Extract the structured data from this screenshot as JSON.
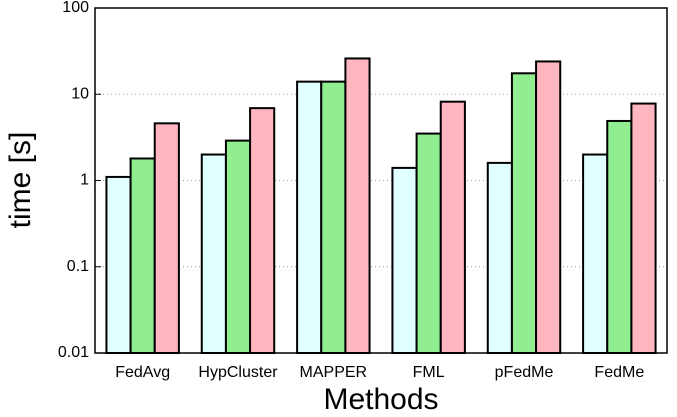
{
  "chart_data": {
    "type": "bar",
    "x_label": "Methods",
    "y_label": "time [s]",
    "categories": [
      "FedAvg",
      "HypCluster",
      "MAPPER",
      "FML",
      "pFedMe",
      "FedMe"
    ],
    "series": [
      {
        "color": "#e0ffff",
        "values": [
          1.1,
          2.0,
          14,
          1.4,
          1.6,
          2.0
        ]
      },
      {
        "color": "#90ee90",
        "values": [
          1.8,
          2.9,
          14,
          3.5,
          17.5,
          4.9
        ]
      },
      {
        "color": "#ffb6c1",
        "values": [
          4.6,
          6.9,
          26,
          8.2,
          24,
          7.8
        ]
      }
    ],
    "log_scale_y": true,
    "ylim": [
      0.01,
      100
    ],
    "yticks": [
      0.01,
      0.1,
      1,
      10,
      100
    ],
    "grid": true
  }
}
